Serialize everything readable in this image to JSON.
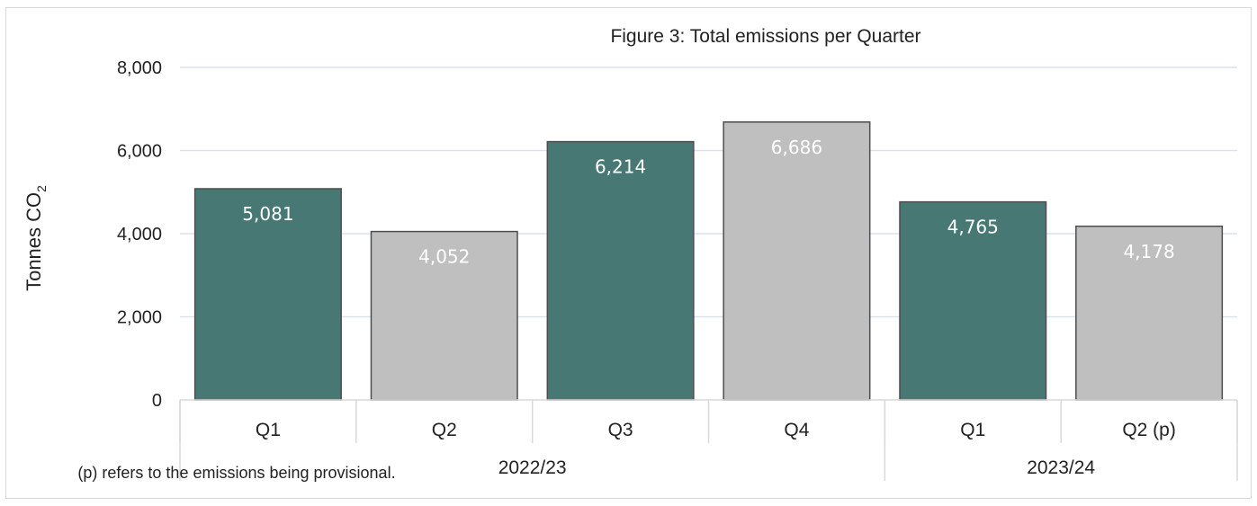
{
  "chart_data": {
    "type": "bar",
    "title": "Figure 3: Total emissions per Quarter",
    "ylabel": "Tonnes CO",
    "ylabel_subscript": "2",
    "ylim": [
      0,
      8000
    ],
    "yticks": [
      0,
      2000,
      4000,
      6000,
      8000
    ],
    "ytick_labels": [
      "0",
      "2,000",
      "4,000",
      "6,000",
      "8,000"
    ],
    "grid": true,
    "legend": "none",
    "categories": [
      "Q1",
      "Q2",
      "Q3",
      "Q4",
      "Q1",
      "Q2 (p)"
    ],
    "groups": [
      {
        "label": "2022/23",
        "count": 4
      },
      {
        "label": "2023/24",
        "count": 2
      }
    ],
    "values": [
      5081,
      4052,
      6214,
      6686,
      4765,
      4178
    ],
    "value_labels": [
      "5,081",
      "4,052",
      "6,214",
      "6,686",
      "4,765",
      "4,178"
    ],
    "provisional": [
      false,
      true,
      false,
      true,
      false,
      true
    ],
    "colors": {
      "bar": "#477873",
      "bar_alt": "#bfbfbf",
      "bar_outline": "#4d4d4d",
      "grid": "#d9e2ef",
      "axis": "#d9d9d9"
    }
  },
  "note": "(p) refers to the emissions being provisional."
}
